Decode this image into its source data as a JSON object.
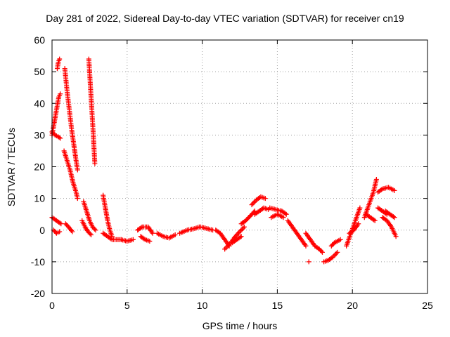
{
  "chart_data": {
    "type": "scatter",
    "title": "Day 281 of 2022, Sidereal Day-to-day VTEC variation (SDTVAR) for receiver cn19",
    "xlabel": "GPS time / hours",
    "ylabel": "SDTVAR / TECUs",
    "xlim": [
      0,
      25
    ],
    "ylim": [
      -20,
      60
    ],
    "xticks": [
      0,
      5,
      10,
      15,
      20,
      25
    ],
    "yticks": [
      -20,
      -10,
      0,
      10,
      20,
      30,
      40,
      50,
      60
    ],
    "grid": true,
    "marker": "+",
    "color": "#ff0000",
    "series": [
      {
        "name": "SDTVAR",
        "segments": [
          {
            "x": [
              0.0,
              0.15,
              0.3,
              0.45,
              0.55
            ],
            "y": [
              30,
              34,
              38,
              42,
              43
            ]
          },
          {
            "x": [
              0.35,
              0.42,
              0.5
            ],
            "y": [
              51,
              53,
              54
            ]
          },
          {
            "x": [
              0.0,
              0.2,
              0.4,
              0.55
            ],
            "y": [
              31,
              30,
              29.5,
              29
            ]
          },
          {
            "x": [
              0.85,
              1.0,
              1.15,
              1.3,
              1.45,
              1.6,
              1.7
            ],
            "y": [
              51,
              44,
              38,
              32,
              27,
              22,
              19
            ]
          },
          {
            "x": [
              0.8,
              1.0,
              1.2,
              1.4,
              1.6,
              1.7
            ],
            "y": [
              25,
              22,
              19,
              15,
              12,
              10
            ]
          },
          {
            "x": [
              2.45,
              2.55,
              2.65,
              2.75,
              2.85
            ],
            "y": [
              54,
              46,
              38,
              30,
              21
            ]
          },
          {
            "x": [
              0.0,
              0.3,
              0.6
            ],
            "y": [
              4,
              3,
              2
            ]
          },
          {
            "x": [
              0.1,
              0.3,
              0.5
            ],
            "y": [
              0,
              -1,
              -0.5
            ]
          },
          {
            "x": [
              0.9,
              1.1,
              1.35
            ],
            "y": [
              2,
              1,
              -0.5
            ]
          },
          {
            "x": [
              2.1,
              2.3,
              2.5,
              2.7,
              2.9
            ],
            "y": [
              9,
              6,
              3,
              1,
              0
            ]
          },
          {
            "x": [
              2.0,
              2.2,
              2.4,
              2.6
            ],
            "y": [
              3,
              1,
              -0.5,
              -1.5
            ]
          },
          {
            "x": [
              3.4,
              3.55,
              3.7,
              3.85,
              4.0
            ],
            "y": [
              11,
              7,
              3,
              0,
              -2
            ]
          },
          {
            "x": [
              3.4,
              3.7,
              4.0,
              4.3,
              4.6
            ],
            "y": [
              -1,
              -2,
              -3,
              -3,
              -3
            ]
          },
          {
            "x": [
              4.6,
              5.0,
              5.4
            ],
            "y": [
              -3,
              -3.5,
              -3
            ]
          },
          {
            "x": [
              5.7,
              6.0,
              6.4,
              6.7
            ],
            "y": [
              0,
              1,
              1,
              -1
            ]
          },
          {
            "x": [
              5.9,
              6.2,
              6.5
            ],
            "y": [
              -2,
              -3,
              -3.5
            ]
          },
          {
            "x": [
              7.0,
              7.4,
              7.8,
              8.2
            ],
            "y": [
              -1,
              -2,
              -2.5,
              -1.5
            ]
          },
          {
            "x": [
              8.5,
              9.0,
              9.5,
              9.8
            ],
            "y": [
              -1,
              0,
              0.5,
              1
            ]
          },
          {
            "x": [
              9.9,
              10.3,
              10.7
            ],
            "y": [
              1,
              0.5,
              0
            ]
          },
          {
            "x": [
              10.9,
              11.2,
              11.5,
              11.8
            ],
            "y": [
              0,
              -1,
              -3,
              -5
            ]
          },
          {
            "x": [
              11.5,
              11.9,
              12.2,
              12.5,
              12.8
            ],
            "y": [
              -6,
              -4,
              -2,
              -0.5,
              1
            ]
          },
          {
            "x": [
              12.0,
              12.3,
              12.6
            ],
            "y": [
              -4,
              -3,
              -2
            ]
          },
          {
            "x": [
              12.6,
              12.9,
              13.1,
              13.3,
              13.5
            ],
            "y": [
              2,
              3,
              4,
              5,
              6
            ]
          },
          {
            "x": [
              13.3,
              13.6,
              13.9,
              14.2
            ],
            "y": [
              8,
              9.5,
              10.5,
              10
            ]
          },
          {
            "x": [
              13.5,
              13.8,
              14.1,
              14.4
            ],
            "y": [
              5,
              6,
              7,
              6.5
            ]
          },
          {
            "x": [
              14.5,
              14.9,
              15.3,
              15.6
            ],
            "y": [
              7,
              6.5,
              6,
              5
            ]
          },
          {
            "x": [
              14.6,
              15.0,
              15.4
            ],
            "y": [
              4,
              5,
              4
            ]
          },
          {
            "x": [
              15.7,
              16.0,
              16.3,
              16.6,
              16.9
            ],
            "y": [
              3,
              1,
              -1,
              -3,
              -5
            ]
          },
          {
            "x": [
              16.9,
              17.2,
              17.5,
              17.8,
              18.0
            ],
            "y": [
              -1,
              -3,
              -5,
              -6,
              -7
            ]
          },
          {
            "x": [
              17.1
            ],
            "y": [
              -10
            ]
          },
          {
            "x": [
              18.1,
              18.4,
              18.7,
              19.0
            ],
            "y": [
              -10,
              -9.5,
              -8.5,
              -7
            ]
          },
          {
            "x": [
              18.6,
              18.8,
              19.0,
              19.2
            ],
            "y": [
              -5,
              -4,
              -3.5,
              -3
            ]
          },
          {
            "x": [
              19.6,
              19.9,
              20.2,
              20.5
            ],
            "y": [
              -5,
              -1,
              3,
              7
            ]
          },
          {
            "x": [
              19.8,
              20.1,
              20.4
            ],
            "y": [
              -1,
              0,
              2
            ]
          },
          {
            "x": [
              20.8,
              21.1,
              21.4,
              21.6
            ],
            "y": [
              4,
              8,
              12,
              16
            ]
          },
          {
            "x": [
              20.9,
              21.2,
              21.5
            ],
            "y": [
              5,
              4,
              3
            ]
          },
          {
            "x": [
              21.7,
              22.0,
              22.4,
              22.8
            ],
            "y": [
              12,
              13,
              13.5,
              12.5
            ]
          },
          {
            "x": [
              21.7,
              22.0,
              22.3
            ],
            "y": [
              7,
              6,
              5
            ]
          },
          {
            "x": [
              22.0,
              22.3,
              22.6,
              22.9
            ],
            "y": [
              4,
              3,
              1,
              -2
            ]
          },
          {
            "x": [
              22.2,
              22.5,
              22.8
            ],
            "y": [
              6,
              5,
              4
            ]
          }
        ]
      }
    ]
  }
}
